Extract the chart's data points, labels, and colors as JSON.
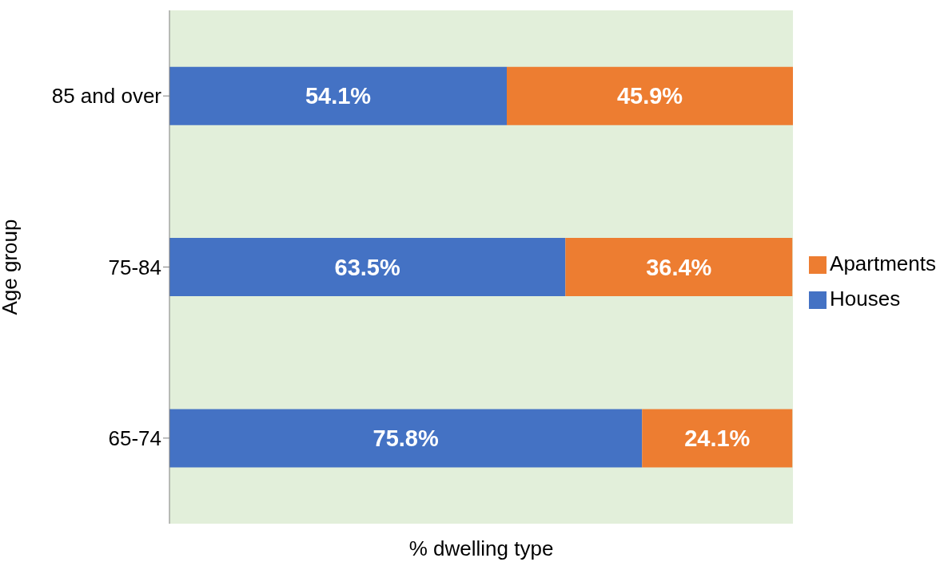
{
  "chart_data": {
    "type": "bar",
    "orientation": "horizontal",
    "stacked": true,
    "xlabel": "% dwelling type",
    "ylabel": "Age group",
    "categories": [
      "85 and over",
      "75-84",
      "65-74"
    ],
    "series": [
      {
        "name": "Houses",
        "color": "#4472c4",
        "values": [
          54.1,
          63.5,
          75.8
        ],
        "value_labels": [
          "54.1%",
          "63.5%",
          "75.8%"
        ]
      },
      {
        "name": "Apartments",
        "color": "#ed7d31",
        "values": [
          45.9,
          36.4,
          24.1
        ],
        "value_labels": [
          "45.9%",
          "36.4%",
          "24.1%"
        ]
      }
    ],
    "legend": "right",
    "tick_labels": "y",
    "grid": false
  }
}
